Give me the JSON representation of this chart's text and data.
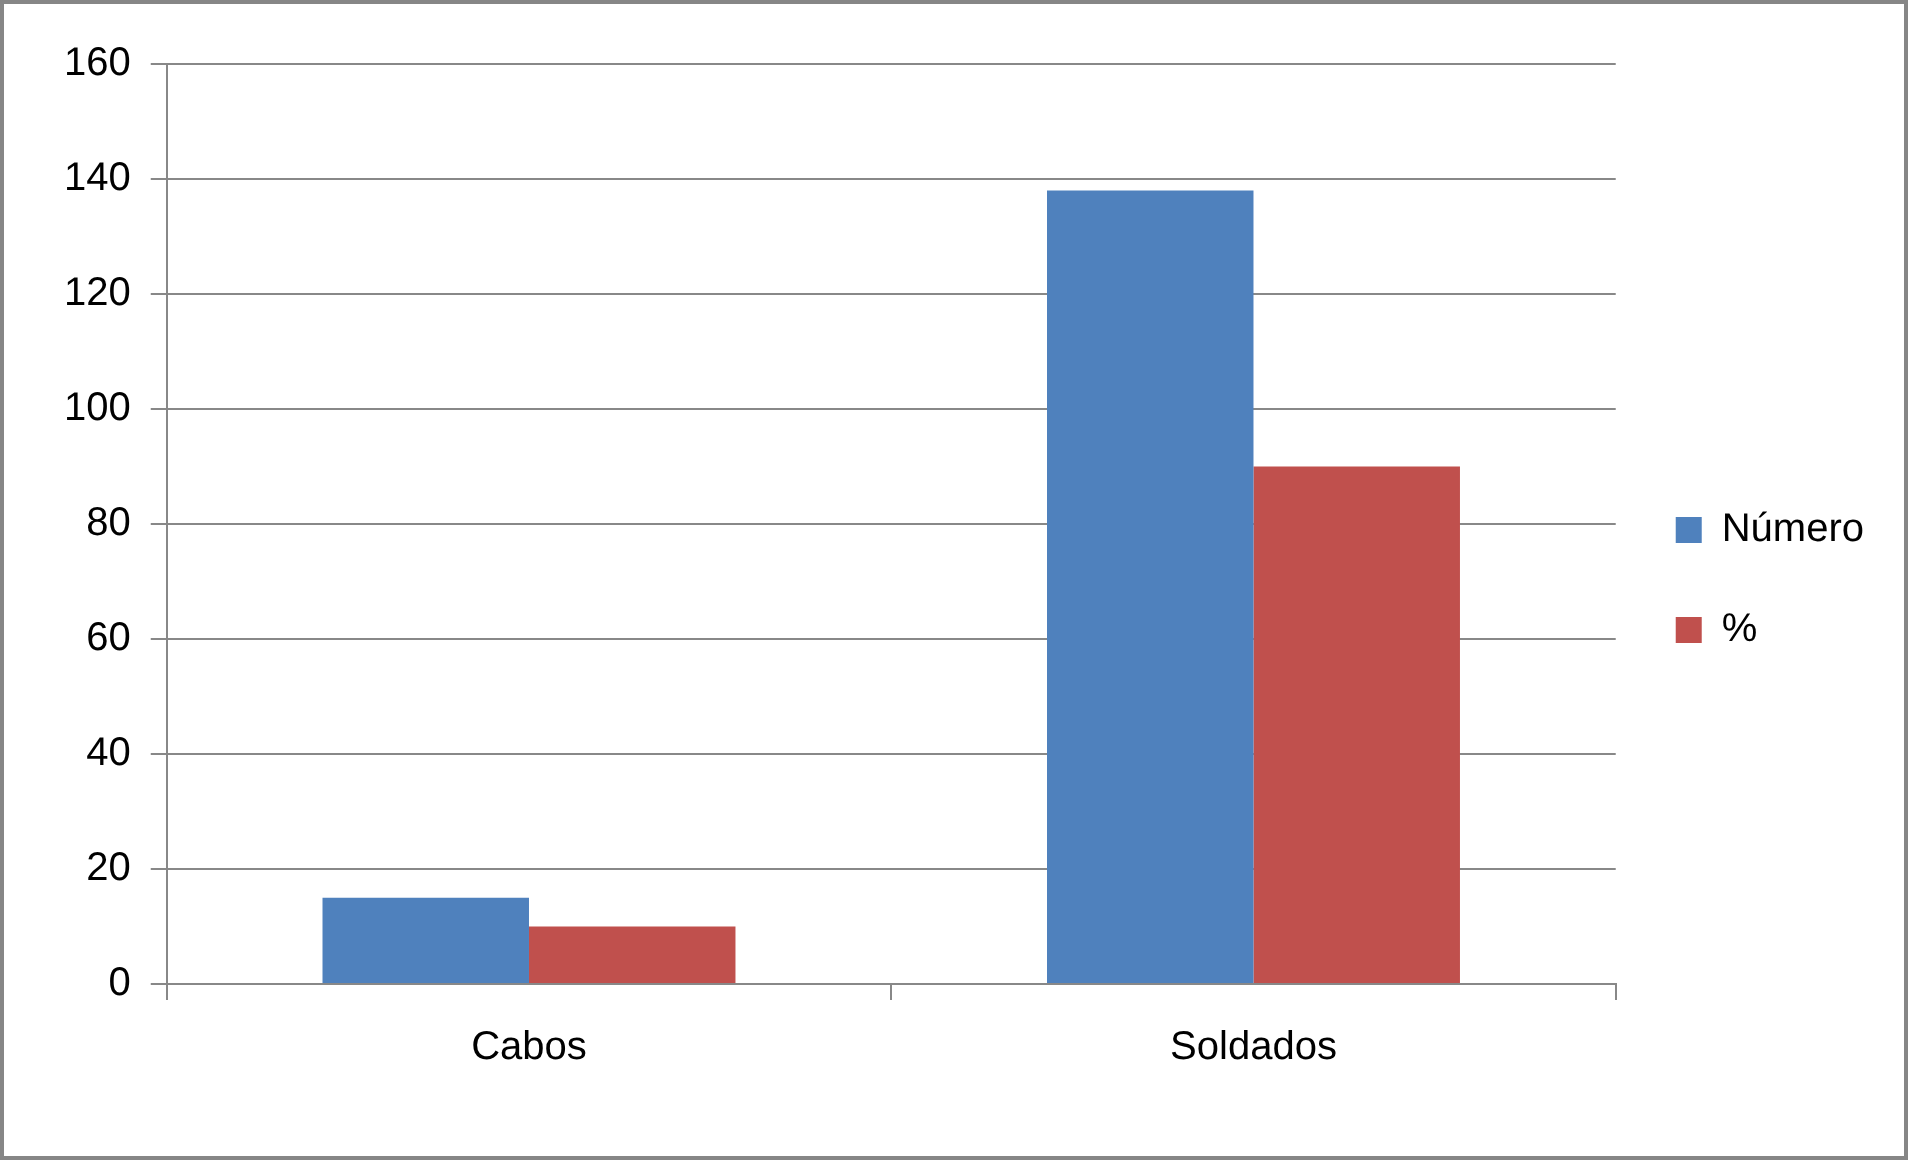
{
  "chart_data": {
    "type": "bar",
    "categories": [
      "Cabos",
      "Soldados"
    ],
    "series": [
      {
        "name": "Número",
        "color": "#4f81bd",
        "values": [
          15,
          138
        ]
      },
      {
        "name": "%",
        "color": "#c0504d",
        "values": [
          10,
          90
        ]
      }
    ],
    "ylim": [
      0,
      160
    ],
    "yticks": [
      0,
      20,
      40,
      60,
      80,
      100,
      120,
      140,
      160
    ],
    "grid": "y",
    "legend": "right"
  }
}
